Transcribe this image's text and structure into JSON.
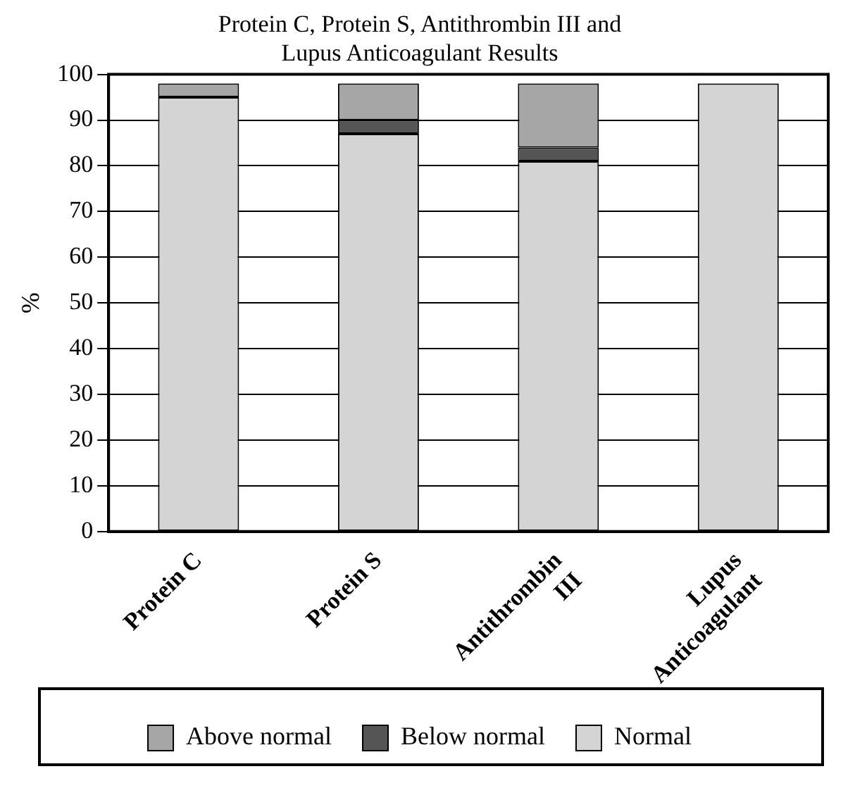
{
  "chart_data": {
    "type": "bar",
    "title": "Protein C, Protein S, Antithrombin III and Lupus Anticoagulant Results",
    "ylabel": "%",
    "categories": [
      "Protein C",
      "Protein S",
      "Antithrombin III",
      "Lupus Anticoagulant"
    ],
    "stacked": true,
    "series": [
      {
        "name": "Normal",
        "color": "#d4d4d4",
        "values": [
          95,
          87,
          81,
          98
        ]
      },
      {
        "name": "Below normal",
        "color": "#555555",
        "values": [
          0,
          3,
          3,
          0
        ]
      },
      {
        "name": "Above normal",
        "color": "#a6a6a6",
        "values": [
          3,
          8,
          14,
          0
        ]
      }
    ],
    "ylim": [
      0,
      100
    ],
    "yticks": [
      0,
      10,
      20,
      30,
      40,
      50,
      60,
      70,
      80,
      90,
      100
    ],
    "grid": "y",
    "legend": "bottom"
  }
}
